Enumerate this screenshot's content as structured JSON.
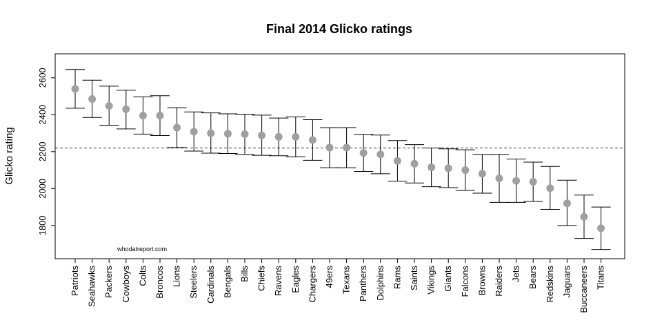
{
  "chart_data": {
    "type": "scatter",
    "title": "Final 2014 Glicko ratings",
    "xlabel": "",
    "ylabel": "Glicko rating",
    "ylim": [
      1620,
      2730
    ],
    "y_ticks": [
      1800,
      2000,
      2200,
      2400,
      2600
    ],
    "reference_line": 2220,
    "note": "whodatreport.com",
    "grid": false,
    "point_color": "#a0a0a0",
    "categories": [
      "Patriots",
      "Seahawks",
      "Packers",
      "Cowboys",
      "Colts",
      "Broncos",
      "Lions",
      "Steelers",
      "Cardinals",
      "Bengals",
      "Bills",
      "Chiefs",
      "Ravens",
      "Eagles",
      "Chargers",
      "49ers",
      "Texans",
      "Panthers",
      "Dolphins",
      "Rams",
      "Saints",
      "Vikings",
      "Giants",
      "Falcons",
      "Browns",
      "Raiders",
      "Jets",
      "Bears",
      "Redskins",
      "Jaguars",
      "Buccaneers",
      "Titans"
    ],
    "values": [
      2540,
      2485,
      2448,
      2430,
      2395,
      2395,
      2330,
      2308,
      2300,
      2297,
      2295,
      2288,
      2280,
      2280,
      2263,
      2222,
      2222,
      2193,
      2185,
      2150,
      2135,
      2115,
      2110,
      2100,
      2080,
      2055,
      2042,
      2037,
      2002,
      1920,
      1847,
      1785
    ],
    "upper": [
      2645,
      2587,
      2555,
      2533,
      2497,
      2503,
      2438,
      2415,
      2410,
      2405,
      2403,
      2398,
      2382,
      2388,
      2373,
      2330,
      2330,
      2293,
      2290,
      2260,
      2238,
      2220,
      2215,
      2210,
      2185,
      2185,
      2160,
      2143,
      2120,
      2045,
      1965,
      1900
    ],
    "lower": [
      2435,
      2385,
      2343,
      2323,
      2295,
      2287,
      2222,
      2203,
      2192,
      2190,
      2185,
      2180,
      2178,
      2172,
      2153,
      2113,
      2113,
      2093,
      2080,
      2040,
      2030,
      2010,
      2005,
      1990,
      1975,
      1925,
      1925,
      1930,
      1887,
      1800,
      1730,
      1670
    ]
  }
}
